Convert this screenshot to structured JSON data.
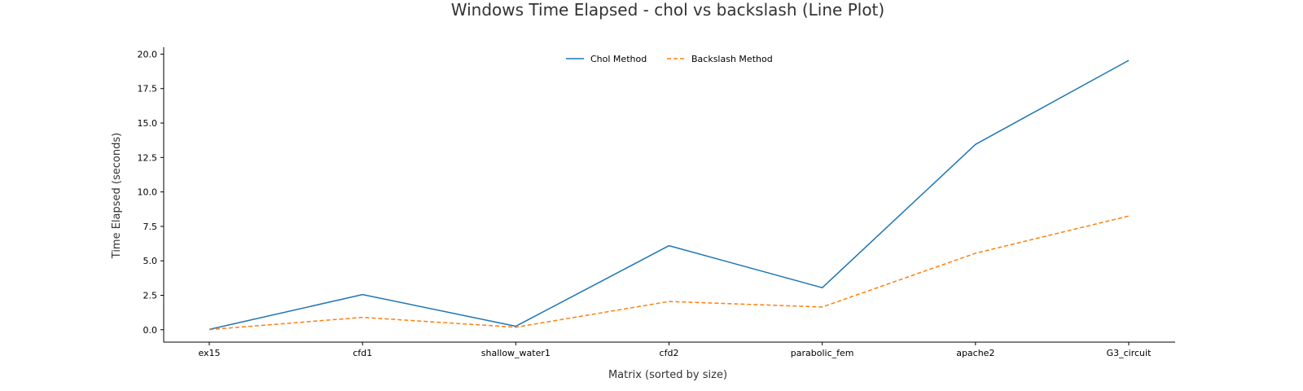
{
  "chart_data": {
    "type": "line",
    "title": "Windows Time Elapsed - chol vs backslash (Line Plot)",
    "xlabel": "Matrix (sorted by size)",
    "ylabel": "Time Elapsed (seconds)",
    "categories": [
      "ex15",
      "cfd1",
      "shallow_water1",
      "cfd2",
      "parabolic_fem",
      "apache2",
      "G3_circuit"
    ],
    "ylim": [
      -0.9,
      20.5
    ],
    "yticks": [
      "0.0",
      "2.5",
      "5.0",
      "7.5",
      "10.0",
      "12.5",
      "15.0",
      "17.5",
      "20.0"
    ],
    "grid": false,
    "legend_position": "top-center",
    "series": [
      {
        "name": "Chol Method",
        "values": [
          0.02,
          2.55,
          0.25,
          6.1,
          3.05,
          13.45,
          19.55
        ],
        "color": "#1f77b4",
        "style": "solid"
      },
      {
        "name": "Backslash Method",
        "values": [
          0.01,
          0.9,
          0.18,
          2.05,
          1.65,
          5.55,
          8.25
        ],
        "color": "#ff7f0e",
        "style": "dashed"
      }
    ]
  }
}
